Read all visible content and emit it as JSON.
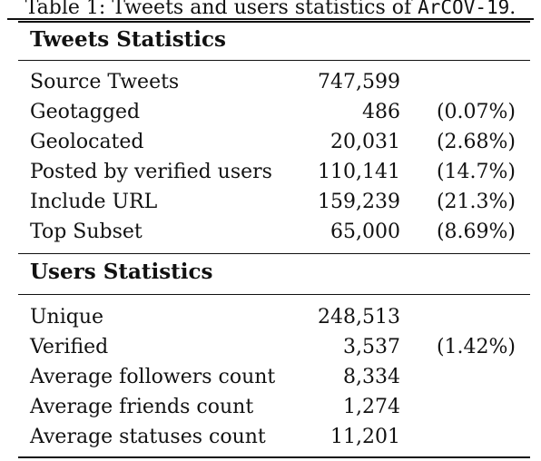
{
  "caption": {
    "prefix": "Table 1: Tweets and users statistics of ",
    "dataset": "ArCOV-19",
    "suffix": "."
  },
  "tweets": {
    "title": "Tweets Statistics",
    "rows": [
      {
        "label": "Source Tweets",
        "value": "747,599",
        "pct": ""
      },
      {
        "label": "Geotagged",
        "value": "486",
        "pct": "(0.07%)"
      },
      {
        "label": "Geolocated",
        "value": "20,031",
        "pct": "(2.68%)"
      },
      {
        "label": "Posted by verified users",
        "value": "110,141",
        "pct": "(14.7%)"
      },
      {
        "label": "Include URL",
        "value": "159,239",
        "pct": "(21.3%)"
      },
      {
        "label": "Top Subset",
        "value": "65,000",
        "pct": "(8.69%)"
      }
    ]
  },
  "users": {
    "title": "Users Statistics",
    "rows": [
      {
        "label": "Unique",
        "value": "248,513",
        "pct": ""
      },
      {
        "label": "Verified",
        "value": "3,537",
        "pct": "(1.42%)"
      },
      {
        "label": "Average followers count",
        "value": "8,334",
        "pct": ""
      },
      {
        "label": "Average friends count",
        "value": "1,274",
        "pct": ""
      },
      {
        "label": "Average statuses count",
        "value": "11,201",
        "pct": ""
      }
    ]
  }
}
